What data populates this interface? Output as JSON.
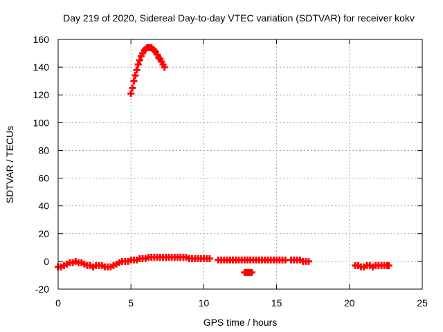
{
  "chart_data": {
    "type": "scatter",
    "title": "Day 219 of 2020, Sidereal Day-to-day VTEC variation (SDTVAR) for receiver kokv",
    "xlabel": "GPS time / hours",
    "ylabel": "SDTVAR / TECUs",
    "xlim": [
      0,
      25
    ],
    "ylim": [
      -20,
      160
    ],
    "grid": true,
    "x_ticks": [
      "0",
      "5",
      "10",
      "15",
      "20",
      "25"
    ],
    "y_ticks": [
      "-20",
      "0",
      "20",
      "40",
      "60",
      "80",
      "100",
      "120",
      "140",
      "160"
    ],
    "marker": "plus",
    "color": "#ff0000",
    "series": [
      {
        "name": "SDTVAR",
        "x": [
          0.0,
          0.2,
          0.4,
          0.6,
          0.8,
          1.0,
          1.2,
          1.4,
          1.6,
          1.8,
          2.0,
          2.2,
          2.4,
          2.6,
          2.8,
          3.0,
          3.2,
          3.4,
          3.6,
          3.8,
          4.0,
          4.2,
          4.4,
          4.6,
          4.8,
          5.0,
          5.2,
          5.4,
          5.6,
          5.8,
          6.0,
          6.2,
          6.4,
          6.6,
          6.8,
          7.0,
          7.2,
          7.4,
          7.6,
          7.8,
          8.0,
          8.2,
          8.4,
          8.6,
          8.8,
          9.0,
          9.2,
          9.4,
          9.6,
          9.8,
          10.0,
          10.2,
          10.4,
          11.0,
          11.2,
          11.4,
          11.6,
          11.8,
          12.0,
          12.2,
          12.4,
          12.6,
          12.8,
          13.0,
          13.2,
          13.4,
          13.6,
          13.8,
          14.0,
          14.2,
          14.4,
          14.6,
          14.8,
          15.0,
          15.2,
          15.4,
          15.6,
          16.0,
          16.2,
          16.4,
          16.6,
          16.8,
          17.0,
          17.2,
          12.8,
          12.9,
          13.0,
          13.1,
          13.2,
          13.3,
          5.0,
          5.1,
          5.2,
          5.3,
          5.4,
          5.5,
          5.6,
          5.7,
          5.8,
          5.9,
          6.0,
          6.1,
          6.2,
          6.3,
          6.4,
          6.5,
          6.6,
          6.7,
          6.8,
          6.9,
          7.0,
          7.1,
          7.2,
          7.3,
          20.4,
          20.6,
          20.8,
          21.0,
          21.2,
          21.4,
          21.6,
          21.8,
          22.0,
          22.2,
          22.4,
          22.6,
          22.7
        ],
        "y": [
          -4,
          -4,
          -3,
          -2,
          -1,
          -1,
          0,
          -1,
          -1,
          -2,
          -3,
          -3,
          -4,
          -3,
          -3,
          -3,
          -4,
          -4,
          -4,
          -3,
          -2,
          -1,
          0,
          0,
          0,
          1,
          1,
          1,
          2,
          2,
          2,
          3,
          3,
          3,
          3,
          3,
          3,
          3,
          3,
          3,
          3,
          3,
          3,
          3,
          3,
          2,
          2,
          2,
          2,
          2,
          2,
          2,
          2,
          1,
          1,
          1,
          1,
          1,
          1,
          1,
          1,
          1,
          1,
          1,
          1,
          1,
          1,
          1,
          1,
          1,
          1,
          1,
          1,
          1,
          1,
          1,
          1,
          1,
          1,
          1,
          1,
          0,
          0,
          0,
          -8,
          -8,
          -8,
          -8,
          -8,
          -8,
          121,
          125,
          130,
          134,
          138,
          142,
          145,
          148,
          150,
          152,
          153,
          154,
          154,
          154,
          154,
          153,
          152,
          151,
          149,
          147,
          146,
          144,
          142,
          140,
          -3,
          -3,
          -4,
          -4,
          -3,
          -3,
          -4,
          -3,
          -3,
          -3,
          -3,
          -3,
          -3
        ]
      }
    ]
  }
}
